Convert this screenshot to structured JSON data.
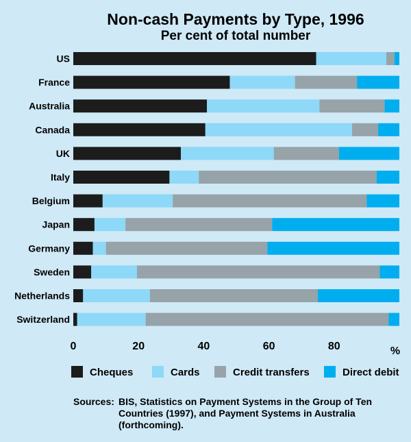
{
  "chart_data": {
    "type": "bar",
    "orientation": "horizontal",
    "stacked": true,
    "title": "Non-cash Payments by Type, 1996",
    "subtitle": "Per cent of total number",
    "xlabel": "%",
    "xlim": [
      0,
      100
    ],
    "xticks": [
      "0",
      "20",
      "40",
      "60",
      "80"
    ],
    "categories": [
      "US",
      "France",
      "Australia",
      "Canada",
      "UK",
      "Italy",
      "Belgium",
      "Japan",
      "Germany",
      "Sweden",
      "Netherlands",
      "Switzerland"
    ],
    "series": [
      {
        "name": "Cheques",
        "color": "#1c1c1c",
        "values": [
          74.5,
          48,
          41,
          40.5,
          33,
          29.5,
          9,
          6.5,
          6,
          5.5,
          3,
          1.2
        ]
      },
      {
        "name": "Cards",
        "color": "#8ed8f8",
        "values": [
          21.5,
          20,
          34.5,
          45,
          28.5,
          9,
          21.5,
          9.5,
          4,
          14,
          20.5,
          21
        ]
      },
      {
        "name": "Credit transfers",
        "color": "#96a3a9",
        "values": [
          2.5,
          19,
          20,
          8,
          20,
          54.5,
          59.5,
          45,
          49.5,
          74.5,
          51.5,
          74.5
        ]
      },
      {
        "name": "Direct debit",
        "color": "#00aeef",
        "values": [
          1.5,
          13,
          4.5,
          6.5,
          18.5,
          7,
          10,
          39,
          40.5,
          6,
          25,
          3.3
        ]
      }
    ],
    "legend_position": "bottom"
  },
  "source": {
    "label": "Sources:",
    "text": "BIS, Statistics on Payment Systems in the Group of Ten Countries (1997), and Payment Systems in Australia (forthcoming)."
  }
}
